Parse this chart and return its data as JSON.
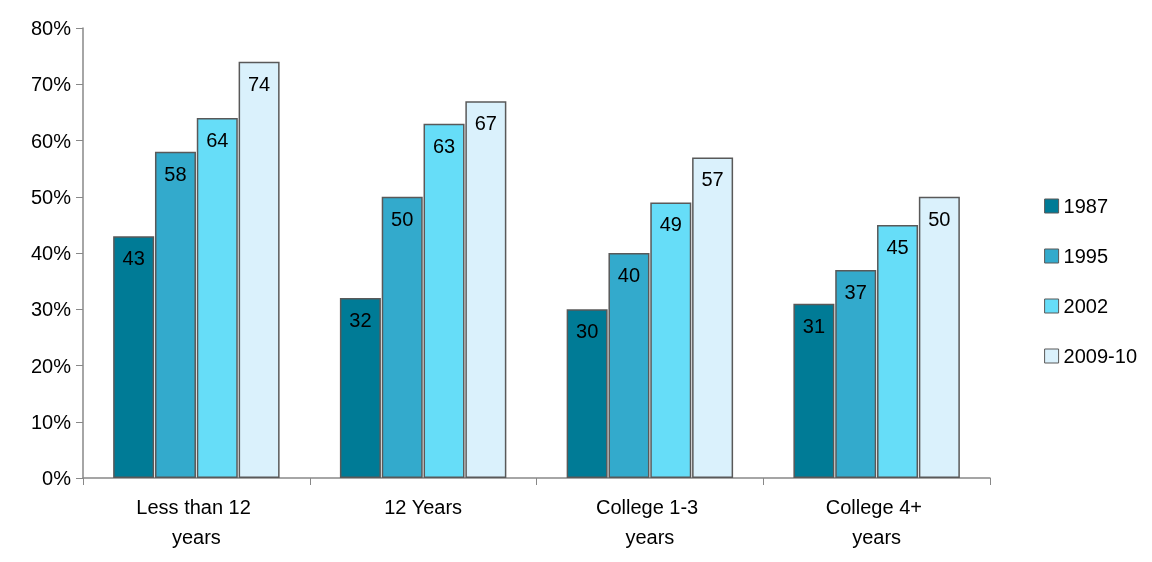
{
  "chart_data": {
    "type": "bar",
    "categories": [
      "Less than 12 years",
      "12 Years",
      "College 1-3 years",
      "College 4+ years"
    ],
    "series": [
      {
        "name": "1987",
        "color": "#007b96",
        "values": [
          43,
          32,
          30,
          31
        ]
      },
      {
        "name": "1995",
        "color": "#33aacc",
        "values": [
          58,
          50,
          40,
          37
        ]
      },
      {
        "name": "2002",
        "color": "#66ddf8",
        "values": [
          64,
          63,
          49,
          45
        ]
      },
      {
        "name": "2009-10",
        "color": "#daf1fc",
        "values": [
          74,
          67,
          57,
          50
        ]
      }
    ],
    "ylim": [
      0,
      80
    ],
    "yticks": [
      {
        "value": 0,
        "label": "0%"
      },
      {
        "value": 10,
        "label": "10%"
      },
      {
        "value": 20,
        "label": "20%"
      },
      {
        "value": 30,
        "label": "30%"
      },
      {
        "value": 40,
        "label": "40%"
      },
      {
        "value": 50,
        "label": "50%"
      },
      {
        "value": 60,
        "label": "60%"
      },
      {
        "value": 70,
        "label": "70%"
      },
      {
        "value": 80,
        "label": "80%"
      }
    ],
    "data_labels": true,
    "grid": false,
    "legend": "right"
  }
}
